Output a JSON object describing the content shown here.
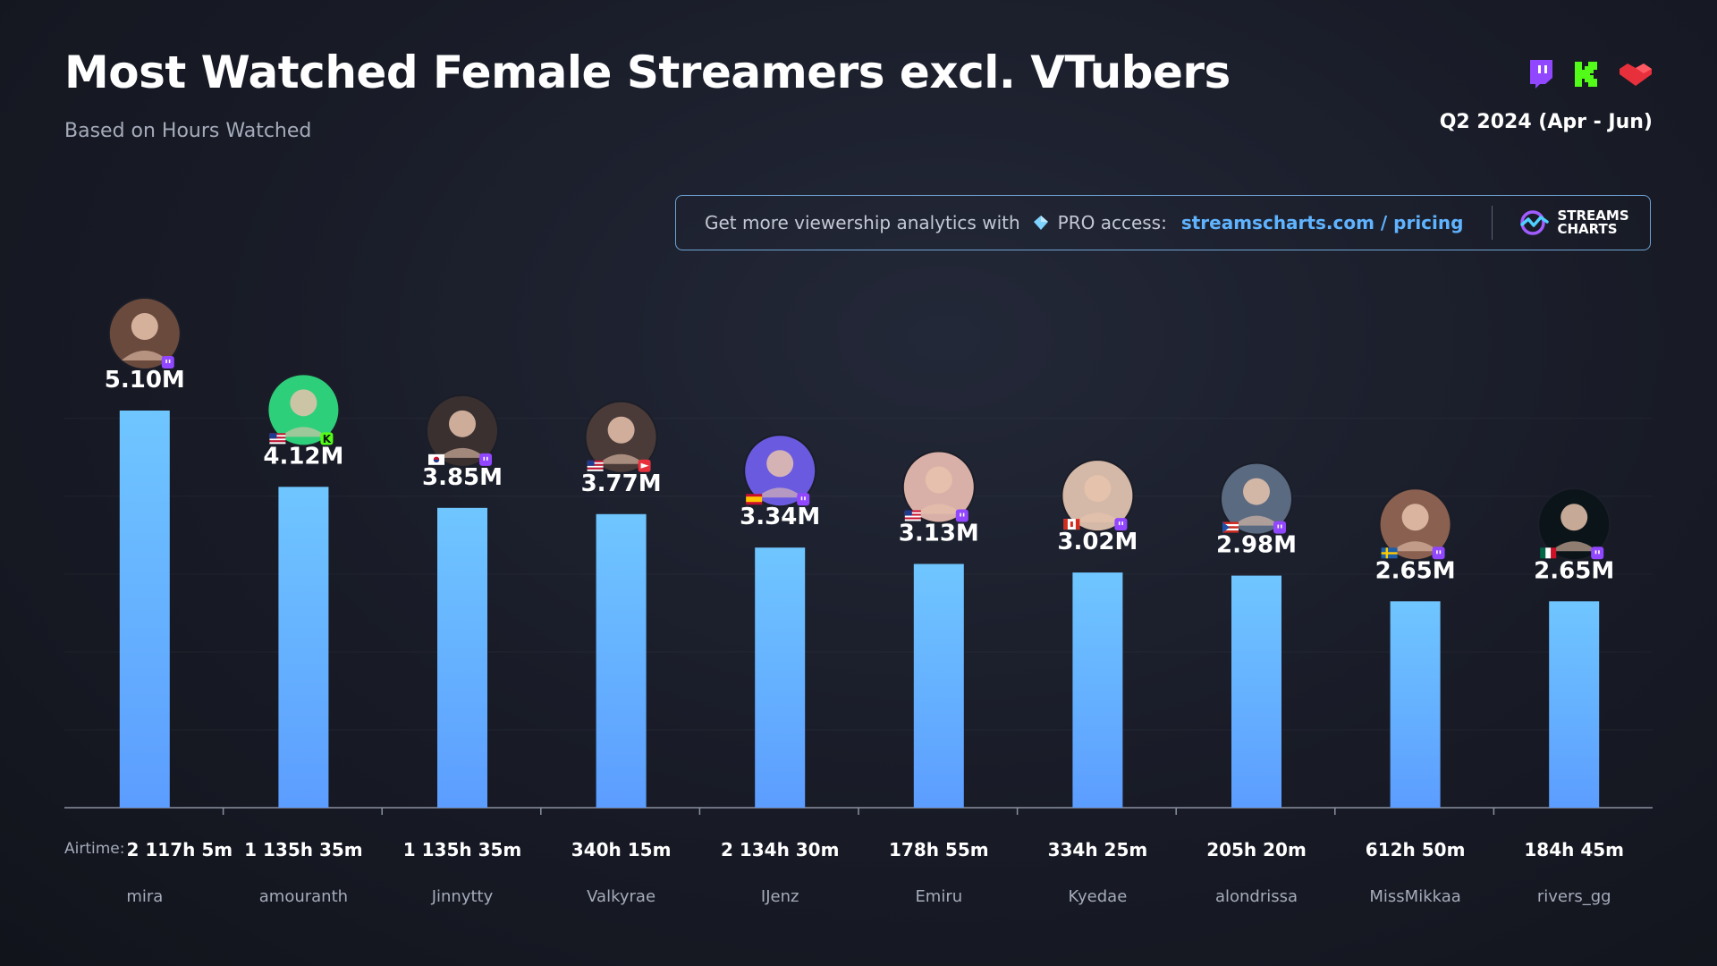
{
  "header": {
    "title": "Most Watched Female Streamers excl. VTubers",
    "subtitle": "Based on Hours Watched",
    "period": "Q2 2024 (Apr - Jun)",
    "platform_icons": [
      "twitch-icon",
      "kick-icon",
      "youtube-icon"
    ]
  },
  "promo": {
    "text": "Get more viewership analytics with",
    "pro": "PRO access:",
    "link": "streamscharts.com / pricing",
    "brand_line1": "STREAMS",
    "brand_line2": "CHARTS"
  },
  "airtime_label": "Airtime:",
  "colors": {
    "bar_top": "#6fc6ff",
    "bar_bottom": "#5c9dff",
    "twitch": "#9146ff",
    "kick": "#53fc18",
    "youtube": "#e8303c",
    "link": "#5fb3ff"
  },
  "chart_data": {
    "type": "bar",
    "title": "Most Watched Female Streamers excl. VTubers",
    "xlabel": "",
    "ylabel": "",
    "ylim": [
      0,
      5.5
    ],
    "grid": true,
    "categories": [
      "mira",
      "amouranth",
      "Jinnytty",
      "Valkyrae",
      "IJenz",
      "Emiru",
      "Kyedae",
      "alondrissa",
      "MissMikkaa",
      "rivers_gg"
    ],
    "values": [
      5.1,
      4.12,
      3.85,
      3.77,
      3.34,
      3.13,
      3.02,
      2.98,
      2.65,
      2.65
    ],
    "value_labels": [
      "5.10M",
      "4.12M",
      "3.85M",
      "3.77M",
      "3.34M",
      "3.13M",
      "3.02M",
      "2.98M",
      "2.65M",
      "2.65M"
    ],
    "airtime": [
      "2 117h 5m",
      "1 135h 35m",
      "1 135h 35m",
      "340h 15m",
      "2 134h 30m",
      "178h 55m",
      "334h 25m",
      "205h 20m",
      "612h 50m",
      "184h 45m"
    ],
    "platform": [
      "twitch",
      "kick",
      "twitch",
      "youtube",
      "twitch",
      "twitch",
      "twitch",
      "twitch",
      "twitch",
      "twitch"
    ],
    "country": [
      "",
      "us",
      "kr",
      "us",
      "es",
      "us",
      "ca",
      "pr",
      "se",
      "mx"
    ],
    "avatar_colors": [
      "#6b4a3e",
      "#2ecf7a",
      "#3a3030",
      "#4a3a38",
      "#6a5ae0",
      "#d9b0a8",
      "#d4b8a8",
      "#5a6a80",
      "#8a6050",
      "#0b1418"
    ]
  }
}
